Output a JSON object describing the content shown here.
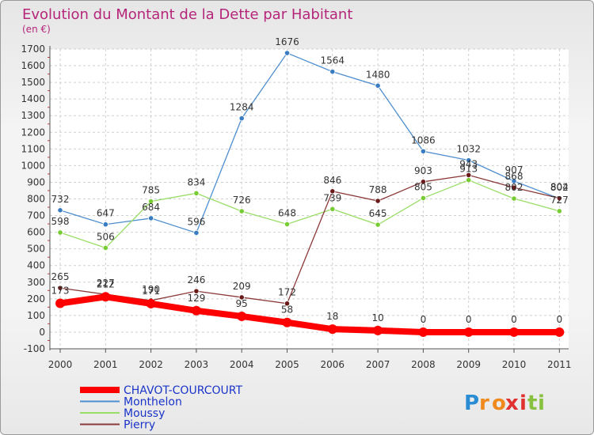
{
  "chart_data": {
    "type": "line",
    "title": "Evolution du Montant de la Dette par Habitant",
    "subtitle": "(en €)",
    "xlabel": "",
    "ylabel": "",
    "x": [
      "2000",
      "2001",
      "2002",
      "2003",
      "2004",
      "2005",
      "2006",
      "2007",
      "2008",
      "2009",
      "2010",
      "2011"
    ],
    "ylim": [
      -100,
      1700
    ],
    "yticks": [
      -100,
      0,
      100,
      200,
      300,
      400,
      500,
      600,
      700,
      800,
      900,
      1000,
      1100,
      1200,
      1300,
      1400,
      1500,
      1600,
      1700
    ],
    "grid": true,
    "legend_position": "bottom-left",
    "series": [
      {
        "name": "CHAVOT-COURCOURT",
        "color": "#ff0000",
        "thick": true,
        "values": [
          173,
          212,
          171,
          129,
          95,
          58,
          18,
          10,
          0,
          0,
          0,
          0
        ]
      },
      {
        "name": "Monthelon",
        "color": "#4f8fcf",
        "point": "#3a7cc2",
        "values": [
          732,
          647,
          684,
          596,
          1284,
          1676,
          1564,
          1480,
          1086,
          1032,
          907,
          802
        ]
      },
      {
        "name": "Moussy",
        "color": "#99dd66",
        "point": "#77cc33",
        "values": [
          598,
          506,
          785,
          834,
          726,
          648,
          739,
          645,
          805,
          913,
          802,
          727
        ]
      },
      {
        "name": "Pierry",
        "color": "#8b3a3a",
        "point": "#6b1a1a",
        "values": [
          265,
          227,
          190,
          246,
          209,
          172,
          846,
          788,
          903,
          943,
          868,
          804
        ]
      }
    ]
  },
  "logo": {
    "text": "Proxiti",
    "letters": [
      "P",
      "r",
      "o",
      "x",
      "i",
      "t",
      "i"
    ],
    "colors": [
      "#2a8dd4",
      "#f08a1c",
      "#f08a1c",
      "#e03030",
      "#e03030",
      "#88c040",
      "#88c040"
    ]
  }
}
